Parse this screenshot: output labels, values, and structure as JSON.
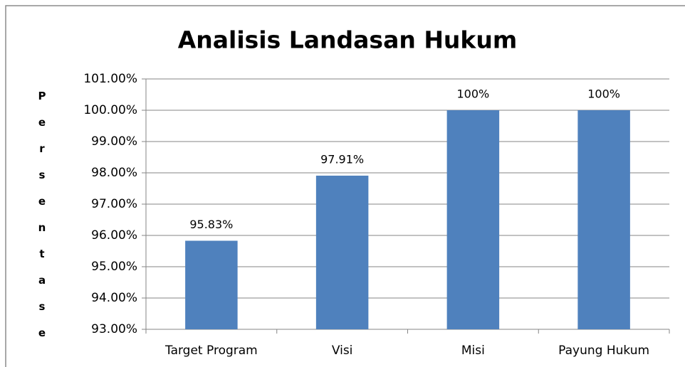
{
  "chart_data": {
    "type": "bar",
    "title": "Analisis Landasan Hukum",
    "y_label": "Persentase",
    "categories": [
      "Target Program",
      "Visi",
      "Misi",
      "Payung Hukum"
    ],
    "values": [
      95.83,
      97.91,
      100,
      100
    ],
    "value_labels": [
      "95.83%",
      "97.91%",
      "100%",
      "100%"
    ],
    "color": "#4f81bd",
    "ylim": [
      93,
      101
    ],
    "yticks": [
      {
        "value": 93,
        "label": "93.00%"
      },
      {
        "value": 94,
        "label": "94.00%"
      },
      {
        "value": 95,
        "label": "95.00%"
      },
      {
        "value": 96,
        "label": "96.00%"
      },
      {
        "value": 97,
        "label": "97.00%"
      },
      {
        "value": 98,
        "label": "98.00%"
      },
      {
        "value": 99,
        "label": "99.00%"
      },
      {
        "value": 100,
        "label": "100.00%"
      },
      {
        "value": 101,
        "label": "101.00%"
      }
    ],
    "grid": true
  }
}
